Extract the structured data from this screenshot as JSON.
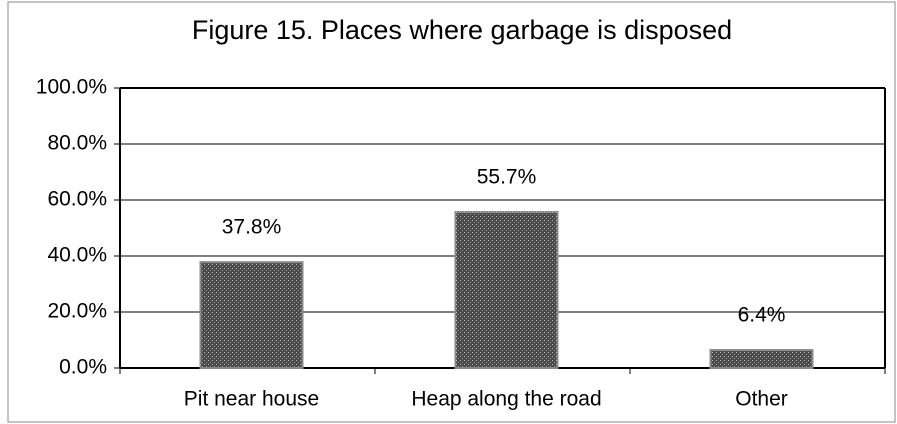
{
  "chart_data": {
    "type": "bar",
    "title": "Figure 15.  Places where garbage is disposed",
    "categories": [
      "Pit near house",
      "Heap along the road",
      "Other"
    ],
    "values": [
      37.8,
      55.7,
      6.4
    ],
    "value_labels": [
      "37.8%",
      "55.7%",
      "6.4%"
    ],
    "color": "#4a4a4a",
    "ylim": [
      0,
      100
    ],
    "yticks": [
      {
        "value": 0,
        "label": "0.0%"
      },
      {
        "value": 20,
        "label": "20.0%"
      },
      {
        "value": 40,
        "label": "40.0%"
      },
      {
        "value": 60,
        "label": "60.0%"
      },
      {
        "value": 80,
        "label": "80.0%"
      },
      {
        "value": 100,
        "label": "100.0%"
      }
    ],
    "grid": true
  }
}
